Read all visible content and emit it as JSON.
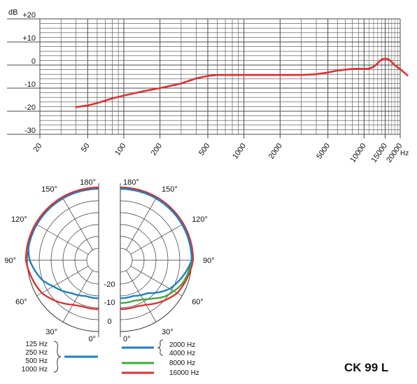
{
  "chart_data": [
    {
      "type": "line",
      "y_unit": "dB",
      "x_unit": "Hz",
      "x_scale": "log",
      "xlim": [
        20,
        20000
      ],
      "ylim": [
        -30,
        20
      ],
      "grid": true,
      "x_tick_labels": [
        "20",
        "50",
        "100",
        "200",
        "500",
        "1000",
        "2000",
        "5000",
        "10000",
        "15000",
        "20000"
      ],
      "y_tick_labels": [
        "+20",
        "+10",
        "0",
        "-10",
        "-20",
        "-30"
      ],
      "series": [
        {
          "color": "#e03030",
          "points": [
            [
              40,
              -18.2
            ],
            [
              50,
              -17.5
            ],
            [
              60,
              -16.5
            ],
            [
              80,
              -14.5
            ],
            [
              100,
              -13.2
            ],
            [
              150,
              -11.2
            ],
            [
              200,
              -10.0
            ],
            [
              300,
              -8.0
            ],
            [
              400,
              -5.8
            ],
            [
              500,
              -4.7
            ],
            [
              600,
              -4.3
            ],
            [
              800,
              -4.3
            ],
            [
              1000,
              -4.3
            ],
            [
              2000,
              -4.3
            ],
            [
              3000,
              -4.3
            ],
            [
              4000,
              -4.0
            ],
            [
              5000,
              -3.2
            ],
            [
              6000,
              -2.4
            ],
            [
              7000,
              -2.0
            ],
            [
              8000,
              -1.7
            ],
            [
              9000,
              -1.6
            ],
            [
              10000,
              -1.7
            ],
            [
              11000,
              -1.5
            ],
            [
              12000,
              -0.8
            ],
            [
              13000,
              0.8
            ],
            [
              14000,
              2.5
            ],
            [
              15000,
              2.8
            ],
            [
              16000,
              2.5
            ],
            [
              17000,
              1.3
            ],
            [
              18000,
              0.0
            ],
            [
              20000,
              -1.8
            ],
            [
              22000,
              -3.6
            ],
            [
              23000,
              -4.5
            ]
          ]
        }
      ]
    },
    {
      "type": "polar",
      "angle_labels_left": [
        "180°",
        "150°",
        "120°",
        "90°",
        "60°",
        "30°",
        "0°"
      ],
      "angle_labels_right": [
        "180°",
        "150°",
        "120°",
        "90°",
        "60°",
        "30°",
        "0°"
      ],
      "db_labels": [
        "-20",
        "-10",
        "0"
      ],
      "left_legend": {
        "labels": [
          "125 Hz",
          "250 Hz",
          "500 Hz",
          "1000 Hz"
        ],
        "color": "#1a7fc4"
      },
      "right_legend": [
        {
          "labels": [
            "2000 Hz",
            "4000 Hz"
          ],
          "color": "#1a7fc4"
        },
        {
          "labels": [
            "8000 Hz"
          ],
          "color": "#3aaa35"
        },
        {
          "labels": [
            "16000 Hz"
          ],
          "color": "#e03030"
        }
      ],
      "series": [
        {
          "frequency": "125-1000 Hz",
          "color": "#1a7fc4",
          "side": "left",
          "gain_db": [
            [
              0,
              -14
            ],
            [
              20,
              -14
            ],
            [
              30,
              -13
            ],
            [
              40,
              -12
            ],
            [
              50,
              -10
            ],
            [
              60,
              -8
            ],
            [
              70,
              -5
            ],
            [
              80,
              -3
            ],
            [
              90,
              -1
            ],
            [
              100,
              0
            ],
            [
              180,
              0
            ]
          ]
        },
        {
          "frequency": "2000-4000 Hz",
          "color": "#1a7fc4",
          "side": "right",
          "gain_db": [
            [
              0,
              -14
            ],
            [
              20,
              -14
            ],
            [
              30,
              -13
            ],
            [
              40,
              -12
            ],
            [
              50,
              -9
            ],
            [
              60,
              -6
            ],
            [
              70,
              -4
            ],
            [
              80,
              -2
            ],
            [
              90,
              0
            ],
            [
              100,
              0
            ],
            [
              180,
              0
            ]
          ]
        },
        {
          "frequency": "8000 Hz",
          "color": "#3aaa35",
          "side": "right",
          "gain_db": [
            [
              0,
              -12
            ],
            [
              20,
              -12
            ],
            [
              30,
              -11
            ],
            [
              40,
              -9
            ],
            [
              50,
              -6
            ],
            [
              60,
              -4
            ],
            [
              70,
              -2
            ],
            [
              80,
              -1
            ],
            [
              90,
              0
            ],
            [
              100,
              0
            ],
            [
              180,
              0
            ]
          ]
        },
        {
          "frequency": "16000 Hz",
          "color": "#e03030",
          "side": "right",
          "gain_db": [
            [
              0,
              -10
            ],
            [
              20,
              -10
            ],
            [
              30,
              -9
            ],
            [
              40,
              -7
            ],
            [
              50,
              -5
            ],
            [
              60,
              -3
            ],
            [
              70,
              -2
            ],
            [
              80,
              -1
            ],
            [
              90,
              0
            ],
            [
              100,
              0
            ],
            [
              180,
              0
            ]
          ]
        }
      ]
    }
  ],
  "labels": {
    "y_axis_title": "dB",
    "x_axis_unit": "Hz",
    "model": "CK 99 L"
  }
}
